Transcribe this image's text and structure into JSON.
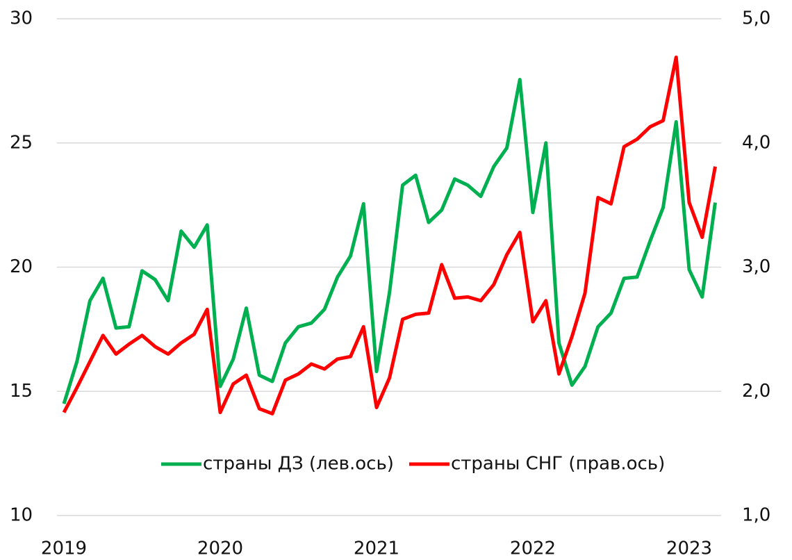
{
  "chart_data": {
    "type": "line",
    "categories": [
      "2019",
      null,
      null,
      null,
      null,
      null,
      null,
      null,
      null,
      null,
      null,
      null,
      "2020",
      null,
      null,
      null,
      null,
      null,
      null,
      null,
      null,
      null,
      null,
      null,
      "2021",
      null,
      null,
      null,
      null,
      null,
      null,
      null,
      null,
      null,
      null,
      null,
      "2022",
      null,
      null,
      null,
      null,
      null,
      null,
      null,
      null,
      null,
      null,
      null,
      "2023",
      null,
      null
    ],
    "series": [
      {
        "name": "страны ДЗ (лев.ось)",
        "color": "#00b050",
        "axis": "y",
        "values": [
          14.5,
          16.2,
          18.65,
          19.55,
          17.55,
          17.6,
          19.85,
          19.5,
          18.65,
          21.45,
          20.8,
          21.7,
          15.2,
          16.3,
          18.35,
          15.65,
          15.4,
          16.95,
          17.6,
          17.75,
          18.3,
          19.6,
          20.45,
          22.55,
          15.8,
          19.0,
          23.3,
          23.7,
          21.8,
          22.3,
          23.55,
          23.3,
          22.85,
          24.05,
          24.8,
          27.55,
          22.2,
          25.0,
          16.95,
          15.25,
          16.0,
          17.6,
          18.15,
          19.55,
          19.6,
          21.05,
          22.4,
          25.85,
          19.9,
          18.8,
          22.6
        ]
      },
      {
        "name": "страны СНГ (прав.ось)",
        "color": "#ff0000",
        "axis": "y2",
        "values": [
          1.83,
          2.03,
          2.24,
          2.45,
          2.3,
          2.38,
          2.45,
          2.36,
          2.3,
          2.39,
          2.46,
          2.66,
          1.83,
          2.06,
          2.13,
          1.86,
          1.82,
          2.09,
          2.14,
          2.22,
          2.18,
          2.26,
          2.28,
          2.52,
          1.87,
          2.11,
          2.58,
          2.62,
          2.63,
          3.02,
          2.75,
          2.76,
          2.73,
          2.86,
          3.1,
          3.28,
          2.56,
          2.73,
          2.14,
          2.44,
          2.79,
          3.56,
          3.51,
          3.97,
          4.03,
          4.13,
          4.18,
          4.69,
          3.52,
          3.24,
          3.81
        ]
      }
    ],
    "ylim": [
      10,
      30
    ],
    "yticks": [
      10,
      15,
      20,
      25,
      30
    ],
    "y2lim": [
      1,
      5
    ],
    "y2ticks": [
      {
        "value": 1,
        "label": "1,0"
      },
      {
        "value": 2,
        "label": "2,0"
      },
      {
        "value": 3,
        "label": "3,0"
      },
      {
        "value": 4,
        "label": "4,0"
      },
      {
        "value": 5,
        "label": "5,0"
      }
    ],
    "grid": true,
    "legend": "bottom"
  }
}
